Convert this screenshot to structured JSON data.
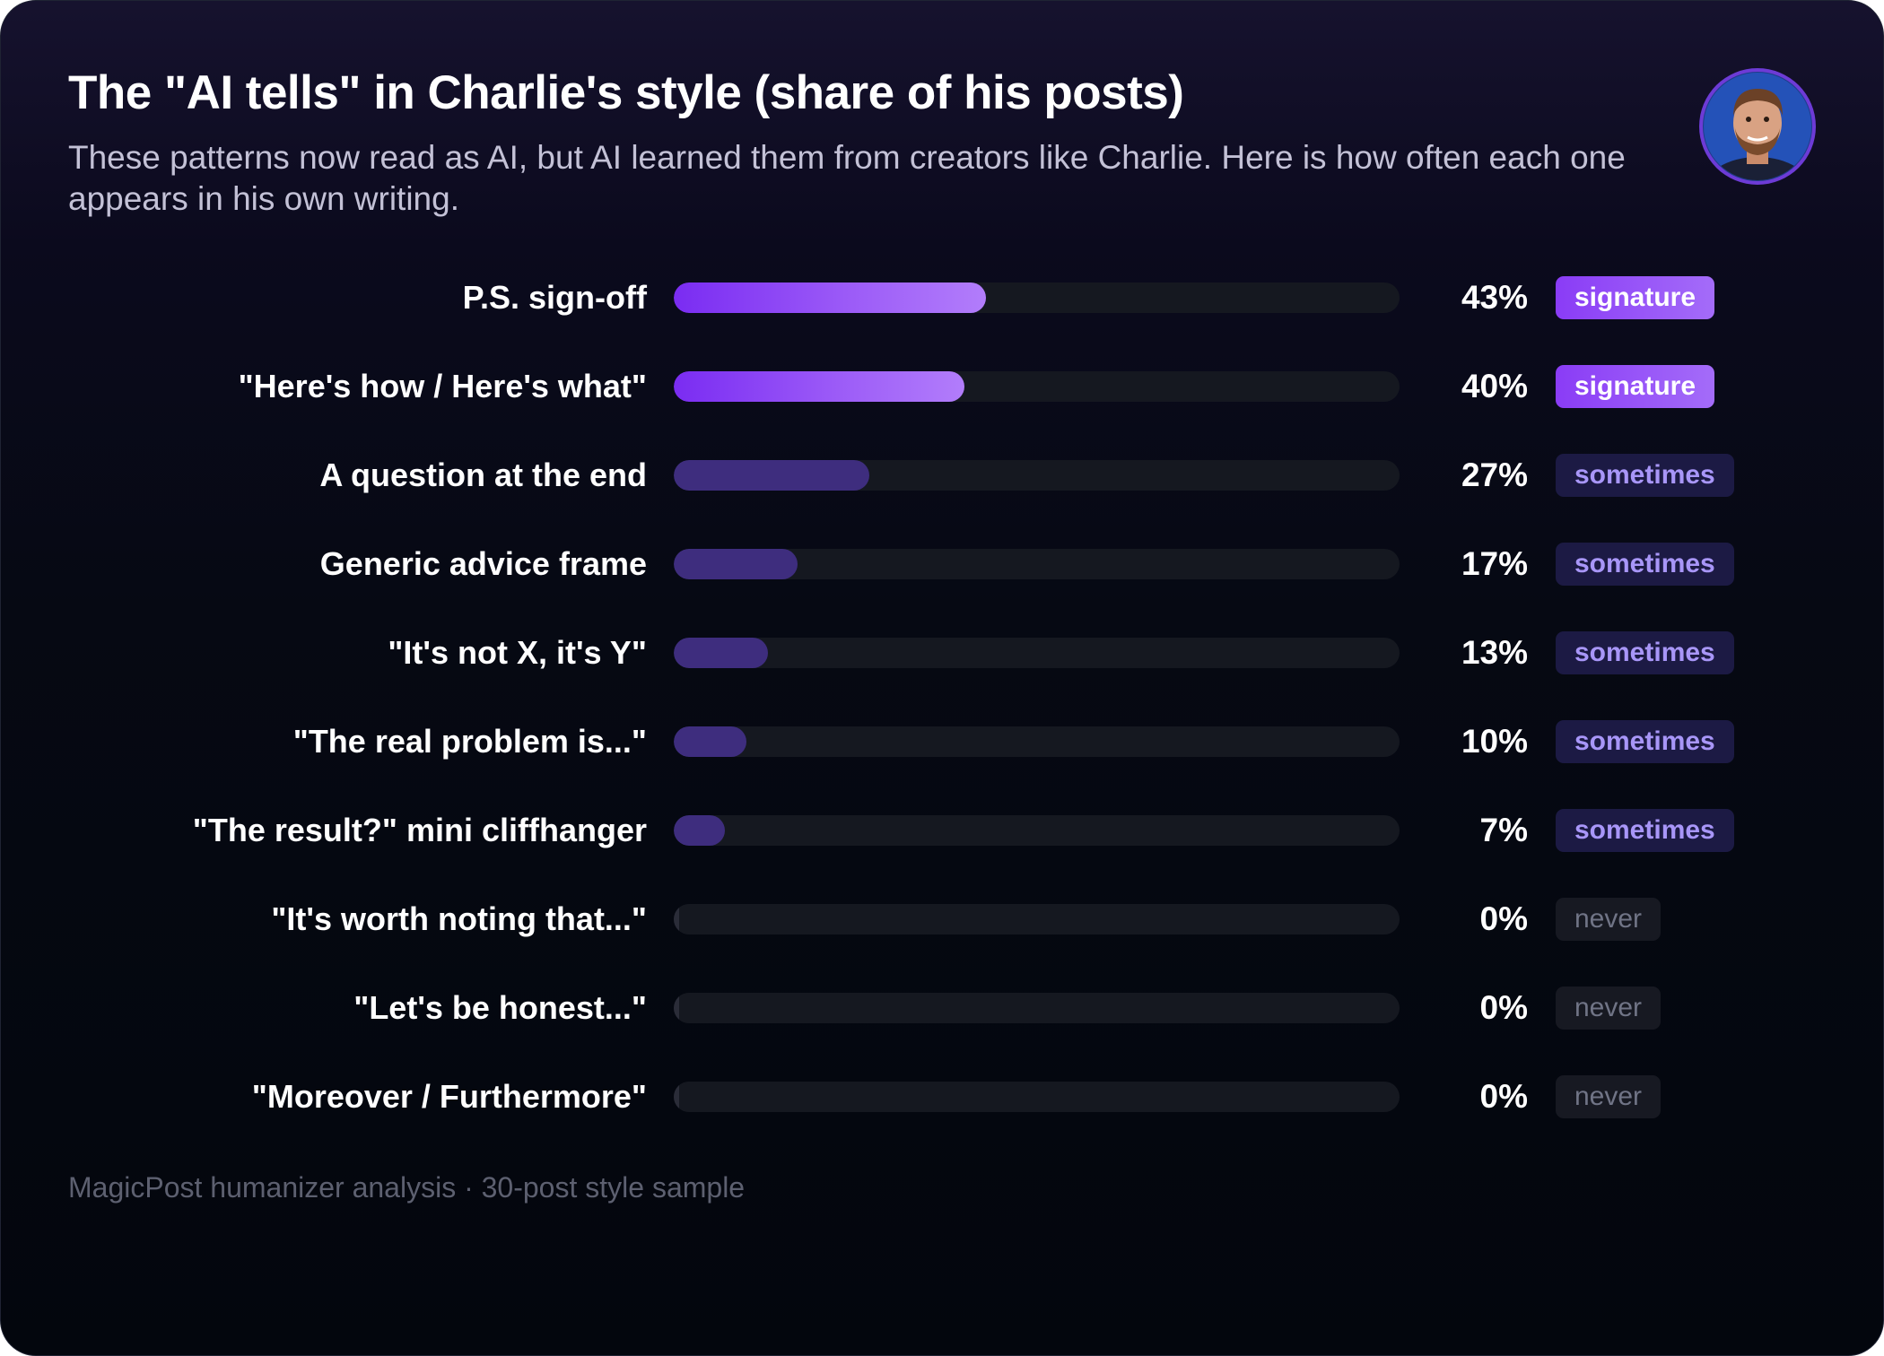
{
  "header": {
    "title": "The \"AI tells\" in Charlie's style (share of his posts)",
    "subtitle": "These patterns now read as AI, but AI learned them from creators like Charlie. Here is how often each one appears in his own writing."
  },
  "footnote": "MagicPost humanizer analysis · 30-post style sample",
  "colors": {
    "background": "#03060d",
    "signature": "#9b5af7",
    "sometimes": "#3e2d7e",
    "never": "#2a2c38",
    "track": "#151820"
  },
  "chart_data": {
    "type": "bar",
    "orientation": "horizontal",
    "title": "The \"AI tells\" in Charlie's style (share of his posts)",
    "xlim": [
      0,
      100
    ],
    "unit": "%",
    "grid": false,
    "categories": [
      "P.S. sign-off",
      "\"Here's how / Here's what\"",
      "A question at the end",
      "Generic advice frame",
      "\"It's not X, it's Y\"",
      "\"The real problem is...\"",
      "\"The result?\" mini cliffhanger",
      "\"It's worth noting that...\"",
      "\"Let's be honest...\"",
      "\"Moreover / Furthermore\""
    ],
    "values": [
      43,
      40,
      27,
      17,
      13,
      10,
      7,
      0,
      0,
      0
    ],
    "value_labels": [
      "43%",
      "40%",
      "27%",
      "17%",
      "13%",
      "10%",
      "7%",
      "0%",
      "0%",
      "0%"
    ],
    "tiers": [
      "signature",
      "signature",
      "sometimes",
      "sometimes",
      "sometimes",
      "sometimes",
      "sometimes",
      "never",
      "never",
      "never"
    ]
  }
}
